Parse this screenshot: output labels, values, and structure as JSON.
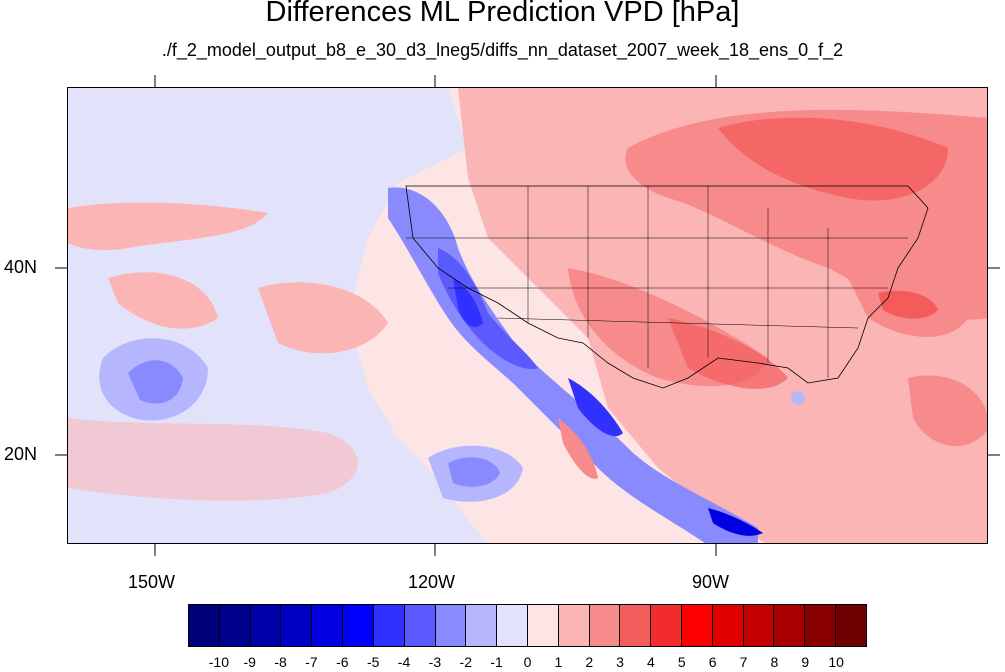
{
  "title": "Differences ML Prediction VPD [hPa]",
  "subtitle": "./f_2_model_output_b8_e_30_d3_lneg5/diffs_nn_dataset_2007_week_18_ens_0_f_2",
  "map": {
    "lat_labels": [
      "40N",
      "20N"
    ],
    "lon_labels": [
      "150W",
      "120W",
      "90W"
    ]
  },
  "colorbar": {
    "labels": [
      "-10",
      "-9",
      "-8",
      "-7",
      "-6",
      "-5",
      "-4",
      "-3",
      "-2",
      "-1",
      "0",
      "1",
      "2",
      "3",
      "4",
      "5",
      "6",
      "7",
      "8",
      "9",
      "10"
    ],
    "colors": [
      "#00007a",
      "#00008f",
      "#0000a8",
      "#0000c4",
      "#0000e0",
      "#0000ff",
      "#3030ff",
      "#5a5aff",
      "#8a8aff",
      "#b6b6ff",
      "#e2e2fb",
      "#fde5e5",
      "#fbb5b5",
      "#f78a8a",
      "#f45c5c",
      "#f22c2c",
      "#ff0000",
      "#e00000",
      "#c40000",
      "#a80000",
      "#8a0000",
      "#6e0000"
    ]
  }
}
